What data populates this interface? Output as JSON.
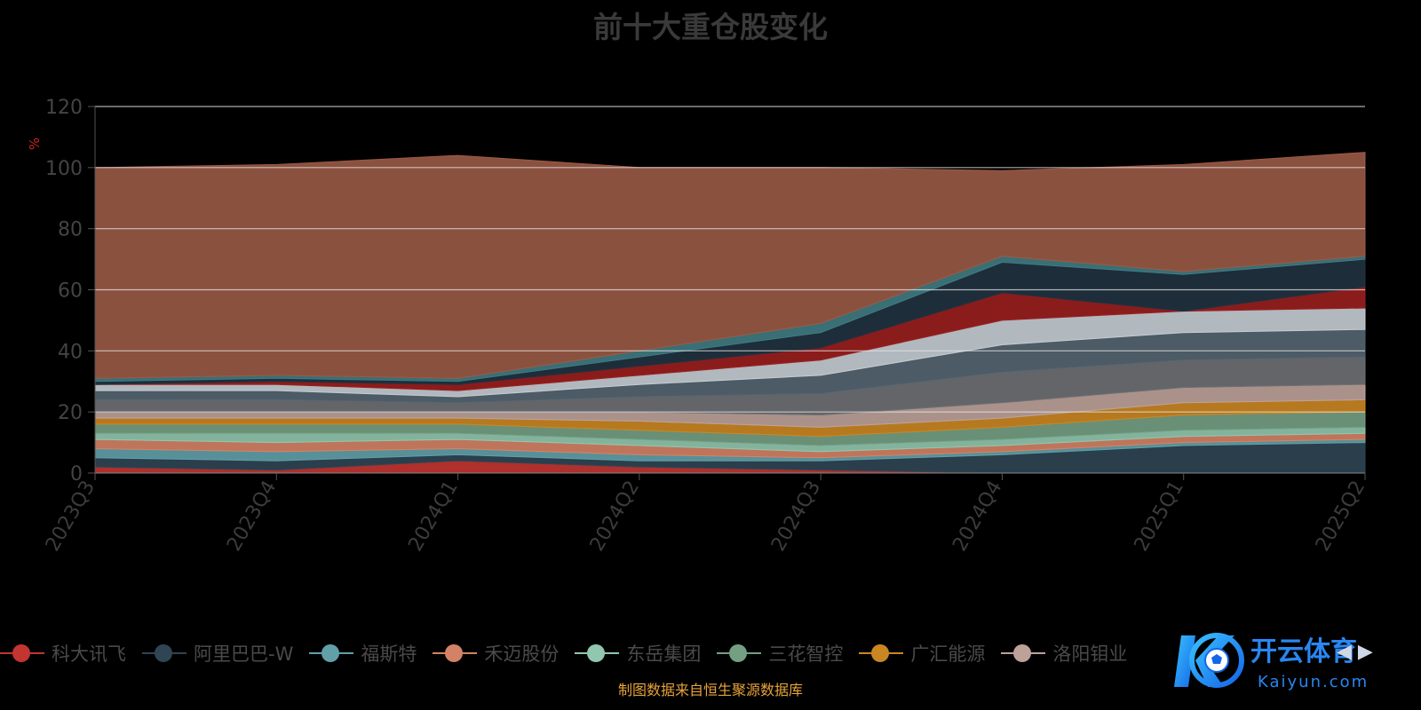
{
  "title": "前十大重仓股变化",
  "source_note": "制图数据来自恒生聚源数据库",
  "watermark": {
    "brand_cn": "开云体育",
    "brand_en": "Kaiyun.com"
  },
  "legend_pager": "◀ ▶",
  "chart_data": {
    "type": "area",
    "stacked": true,
    "ylabel": "%",
    "ylim": [
      0,
      120
    ],
    "yticks": [
      0,
      20,
      40,
      60,
      80,
      100,
      120
    ],
    "grid": true,
    "legend_position": "bottom",
    "categories": [
      "2023Q3",
      "2023Q4",
      "2024Q1",
      "2024Q2",
      "2024Q3",
      "2024Q4",
      "2025Q1",
      "2025Q2"
    ],
    "series": [
      {
        "name": "科大讯飞",
        "color": "#c23531",
        "values": [
          2,
          1,
          4,
          2,
          1,
          0,
          0,
          0
        ]
      },
      {
        "name": "阿里巴巴-W",
        "color": "#2f4554",
        "values": [
          3,
          3,
          2,
          2,
          3,
          6,
          9,
          10
        ]
      },
      {
        "name": "福斯特",
        "color": "#61a0a8",
        "values": [
          3,
          3,
          2,
          2,
          1,
          1,
          1,
          1
        ]
      },
      {
        "name": "禾迈股份",
        "color": "#d48265",
        "values": [
          3,
          3,
          3,
          3,
          2,
          2,
          2,
          2
        ]
      },
      {
        "name": "东岳集团",
        "color": "#91c7ae",
        "values": [
          2,
          3,
          2,
          2,
          2,
          2,
          2,
          2
        ]
      },
      {
        "name": "三花智控",
        "color": "#749f83",
        "values": [
          3,
          3,
          3,
          3,
          3,
          4,
          5,
          5
        ]
      },
      {
        "name": "广汇能源",
        "color": "#ca8622",
        "values": [
          2,
          2,
          2,
          3,
          3,
          3,
          4,
          4
        ]
      },
      {
        "name": "洛阳钼业",
        "color": "#bda29a",
        "values": [
          2,
          2,
          2,
          3,
          4,
          5,
          5,
          5
        ]
      },
      {
        "name": "",
        "color": "#6e7074",
        "values": [
          4,
          4,
          3,
          5,
          7,
          10,
          9,
          9
        ]
      },
      {
        "name": "",
        "color": "#546570",
        "values": [
          3,
          3,
          2,
          4,
          6,
          9,
          9,
          9
        ]
      },
      {
        "name": "",
        "color": "#c4ccd3",
        "values": [
          2,
          2,
          2,
          3,
          5,
          8,
          7,
          7
        ]
      },
      {
        "name": "",
        "color": "#9a1f1f",
        "values": [
          0,
          1,
          2,
          3,
          4,
          9,
          0,
          7
        ]
      },
      {
        "name": "",
        "color": "#213240",
        "values": [
          1,
          1,
          1,
          3,
          5,
          10,
          12,
          9
        ]
      },
      {
        "name": "",
        "color": "#3f7b82",
        "values": [
          1,
          1,
          1,
          2,
          3,
          2,
          1,
          1
        ]
      },
      {
        "name": "",
        "color": "#9a5a46",
        "values": [
          69,
          69,
          73,
          60,
          51,
          28,
          35,
          34
        ]
      }
    ]
  },
  "legend": [
    {
      "label": "科大讯飞",
      "color": "#c23531"
    },
    {
      "label": "阿里巴巴-W",
      "color": "#2f4554"
    },
    {
      "label": "福斯特",
      "color": "#61a0a8"
    },
    {
      "label": "禾迈股份",
      "color": "#d48265"
    },
    {
      "label": "东岳集团",
      "color": "#91c7ae"
    },
    {
      "label": "三花智控",
      "color": "#749f83"
    },
    {
      "label": "广汇能源",
      "color": "#ca8622"
    },
    {
      "label": "洛阳钼业",
      "color": "#bda29a"
    }
  ]
}
